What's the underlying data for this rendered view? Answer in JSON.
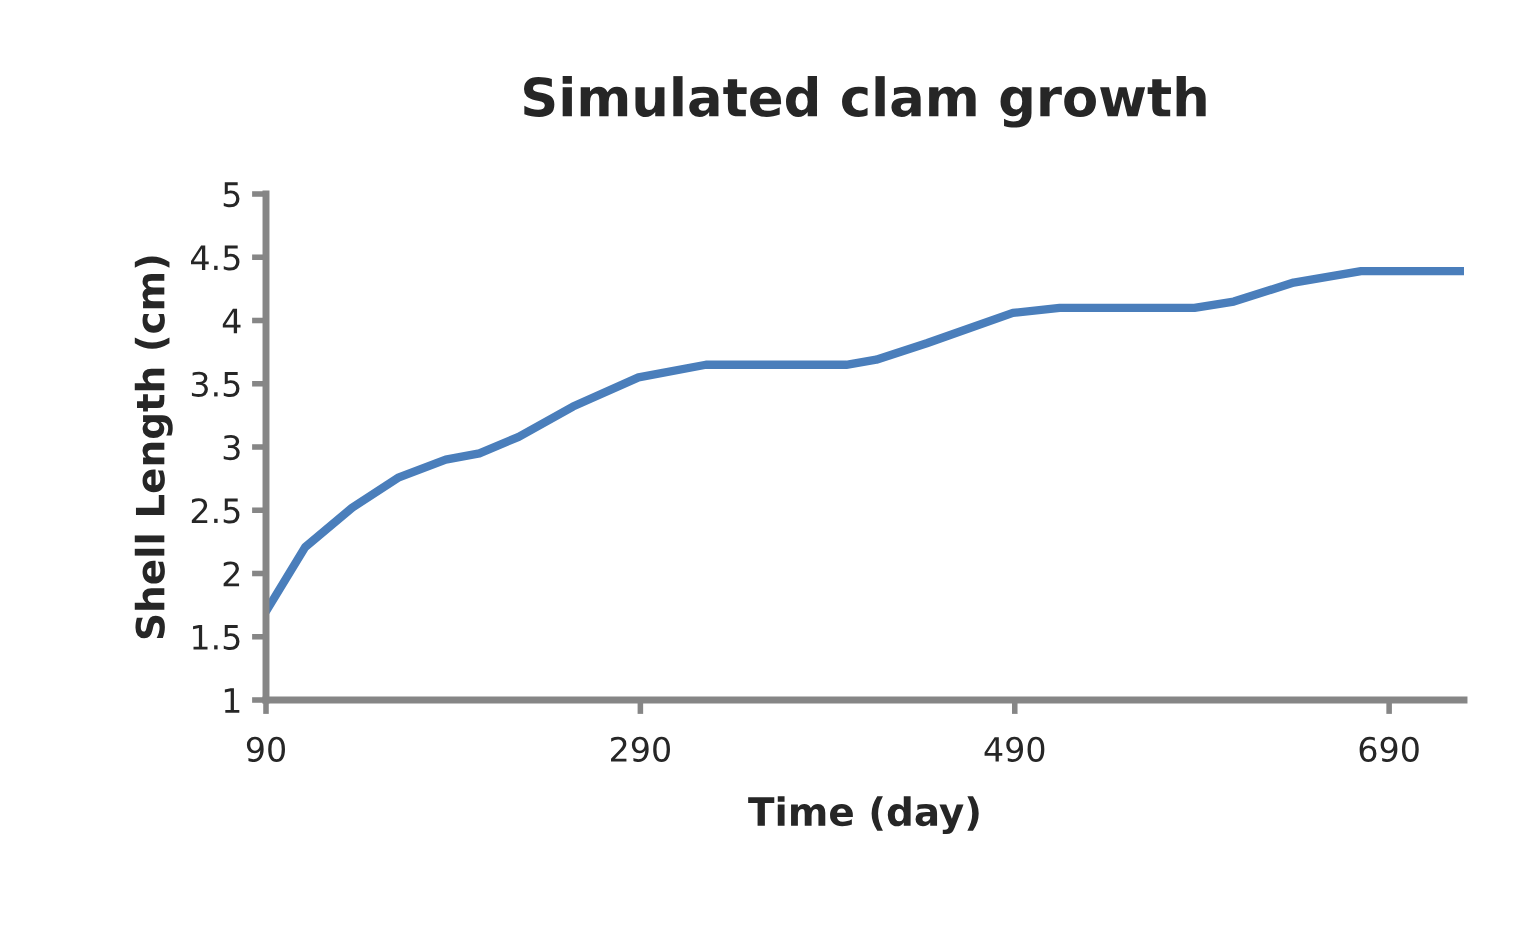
{
  "chart_data": {
    "type": "line",
    "title": "Simulated clam growth",
    "xlabel": "Time (day)",
    "ylabel": "Shell Length (cm)",
    "x": [
      90,
      111,
      136,
      161,
      186,
      204,
      225,
      254,
      289,
      325,
      360,
      400,
      416,
      443,
      489,
      514,
      586,
      607,
      639,
      675,
      730
    ],
    "series": [
      {
        "color": "#4a7ebb",
        "values": [
          1.7,
          2.21,
          2.52,
          2.76,
          2.9,
          2.95,
          3.08,
          3.32,
          3.55,
          3.65,
          3.65,
          3.65,
          3.69,
          3.82,
          4.06,
          4.1,
          4.1,
          4.15,
          4.3,
          4.39,
          4.39
        ]
      }
    ],
    "xlim": [
      90,
      730
    ],
    "xticks": [
      90,
      290,
      490,
      690
    ],
    "ylim": [
      1,
      5
    ],
    "yticks": [
      1,
      1.5,
      2,
      2.5,
      3,
      3.5,
      4,
      4.5,
      5
    ],
    "grid": false,
    "marker": "none",
    "line_style": "solid"
  }
}
